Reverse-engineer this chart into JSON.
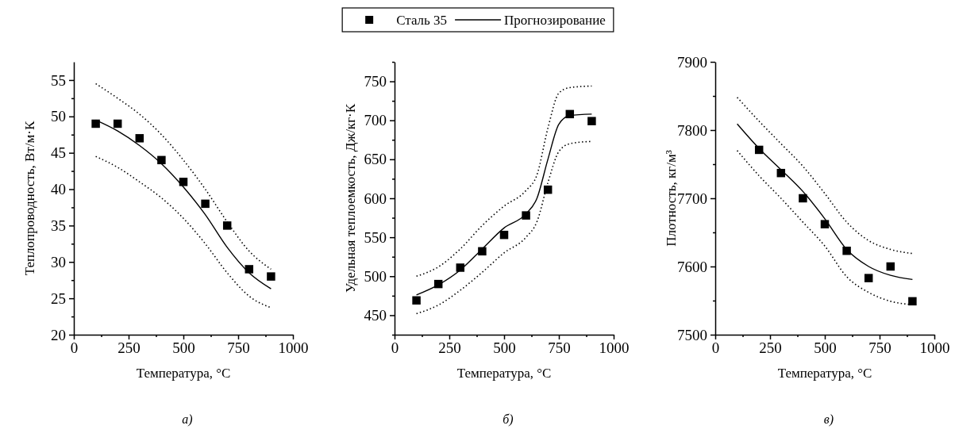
{
  "chart_data": [
    {
      "type": "scatter",
      "xlabel": "Температура, °С",
      "ylabel": "Теплопроводность, Вт/м·К",
      "xlim": [
        0,
        1000
      ],
      "ylim": [
        20,
        57.5
      ],
      "xticks": [
        0,
        {
          "value": 125,
          "label": null
        },
        250,
        {
          "value": 375,
          "label": null
        },
        500,
        {
          "value": 625,
          "label": null
        },
        750,
        {
          "value": 875,
          "label": null
        },
        1000
      ],
      "yticks": [
        20,
        {
          "value": 22.5,
          "label": null
        },
        25,
        {
          "value": 27.5,
          "label": null
        },
        30,
        {
          "value": 32.5,
          "label": null
        },
        35,
        {
          "value": 37.5,
          "label": null
        },
        40,
        {
          "value": 42.5,
          "label": null
        },
        45,
        {
          "value": 47.5,
          "label": null
        },
        50,
        {
          "value": 52.5,
          "label": null
        },
        55
      ],
      "series": [
        {
          "type": "scatter",
          "marker": "square",
          "color": "#000000",
          "x": [
            100,
            200,
            300,
            400,
            500,
            600,
            700,
            800,
            900
          ],
          "values": [
            49,
            49,
            47,
            44,
            41,
            38,
            35,
            29,
            28
          ]
        },
        {
          "type": "line",
          "marker": "none",
          "line_style": "solid",
          "color": "#000000",
          "x": [
            100,
            200,
            300,
            400,
            500,
            600,
            700,
            800,
            900
          ],
          "values": [
            49.5,
            48,
            46,
            43.5,
            40.3,
            36.5,
            32,
            28.5,
            26.3
          ]
        },
        {
          "type": "line",
          "marker": "none",
          "line_style": "dotted",
          "color": "#000000",
          "x": [
            100,
            200,
            300,
            400,
            500,
            600,
            700,
            800,
            900
          ],
          "values": [
            44.5,
            43,
            41,
            38.8,
            36,
            32.5,
            28.5,
            25.3,
            23.7
          ]
        },
        {
          "type": "line",
          "marker": "none",
          "line_style": "dotted",
          "color": "#000000",
          "x": [
            100,
            200,
            300,
            400,
            500,
            600,
            700,
            800,
            900
          ],
          "values": [
            54.5,
            52.5,
            50.3,
            47.5,
            44,
            40,
            35.5,
            31.5,
            29
          ]
        }
      ],
      "annotations": [
        "а)"
      ]
    },
    {
      "type": "scatter",
      "xlabel": "Температура, °С",
      "ylabel": "Удельная теплоемкость, Дж/кг·К",
      "xlim": [
        0,
        1000
      ],
      "ylim": [
        425,
        775
      ],
      "legend": "top",
      "xticks": [
        0,
        {
          "value": 125,
          "label": null
        },
        250,
        {
          "value": 375,
          "label": null
        },
        500,
        {
          "value": 625,
          "label": null
        },
        750,
        {
          "value": 875,
          "label": null
        },
        1000
      ],
      "yticks": [
        {
          "value": 425,
          "label": null
        },
        450,
        {
          "value": 475,
          "label": null
        },
        500,
        {
          "value": 525,
          "label": null
        },
        550,
        {
          "value": 575,
          "label": null
        },
        600,
        {
          "value": 625,
          "label": null
        },
        650,
        {
          "value": 675,
          "label": null
        },
        700,
        {
          "value": 725,
          "label": null
        },
        750,
        {
          "value": 775,
          "label": null
        }
      ],
      "series": [
        {
          "type": "scatter",
          "name": "Сталь 35",
          "marker": "square",
          "color": "#000000",
          "x": [
            100,
            200,
            300,
            400,
            500,
            600,
            700,
            800,
            900
          ],
          "values": [
            469,
            490,
            511,
            532,
            553,
            578,
            611,
            708,
            699
          ]
        },
        {
          "type": "line",
          "name": "Прогнозирование",
          "marker": "none",
          "line_style": "solid",
          "color": "#000000",
          "x": [
            100,
            200,
            300,
            400,
            500,
            600,
            650,
            700,
            750,
            800,
            900
          ],
          "values": [
            476,
            489,
            508,
            535,
            562,
            580,
            600,
            650,
            695,
            706,
            708
          ]
        },
        {
          "type": "line",
          "marker": "none",
          "line_style": "dotted",
          "color": "#000000",
          "x": [
            100,
            200,
            300,
            400,
            500,
            600,
            650,
            700,
            750,
            800,
            900
          ],
          "values": [
            452,
            463,
            482,
            505,
            530,
            550,
            570,
            620,
            660,
            670,
            673
          ]
        },
        {
          "type": "line",
          "marker": "none",
          "line_style": "dotted",
          "color": "#000000",
          "x": [
            100,
            200,
            300,
            400,
            500,
            600,
            650,
            700,
            750,
            800,
            900
          ],
          "values": [
            500,
            512,
            535,
            565,
            590,
            610,
            630,
            690,
            735,
            742,
            744
          ]
        }
      ],
      "annotations": [
        "б)"
      ]
    },
    {
      "type": "scatter",
      "xlabel": "Температура, °С",
      "ylabel": "Плотность, кг/м³",
      "xlim": [
        0,
        1000
      ],
      "ylim": [
        7500,
        7900
      ],
      "xticks": [
        0,
        {
          "value": 125,
          "label": null
        },
        250,
        {
          "value": 375,
          "label": null
        },
        500,
        {
          "value": 625,
          "label": null
        },
        750,
        {
          "value": 875,
          "label": null
        },
        1000
      ],
      "yticks": [
        7500,
        {
          "value": 7550,
          "label": null
        },
        7600,
        {
          "value": 7650,
          "label": null
        },
        7700,
        {
          "value": 7750,
          "label": null
        },
        7800,
        {
          "value": 7850,
          "label": null
        },
        7900
      ],
      "series": [
        {
          "type": "scatter",
          "marker": "square",
          "color": "#000000",
          "x": [
            200,
            300,
            400,
            500,
            600,
            700,
            800,
            900
          ],
          "values": [
            7771,
            7737,
            7700,
            7662,
            7623,
            7583,
            7600,
            7549
          ]
        },
        {
          "type": "line",
          "marker": "none",
          "line_style": "solid",
          "color": "#000000",
          "x": [
            100,
            200,
            300,
            400,
            500,
            600,
            700,
            800,
            900
          ],
          "values": [
            7809,
            7773,
            7742,
            7710,
            7670,
            7625,
            7600,
            7587,
            7581
          ]
        },
        {
          "type": "line",
          "marker": "none",
          "line_style": "dotted",
          "color": "#000000",
          "x": [
            100,
            200,
            300,
            400,
            500,
            600,
            700,
            800,
            900
          ],
          "values": [
            7770,
            7733,
            7700,
            7665,
            7630,
            7585,
            7562,
            7549,
            7544
          ]
        },
        {
          "type": "line",
          "marker": "none",
          "line_style": "dotted",
          "color": "#000000",
          "x": [
            100,
            200,
            300,
            400,
            500,
            600,
            700,
            800,
            900
          ],
          "values": [
            7848,
            7813,
            7780,
            7747,
            7707,
            7665,
            7638,
            7625,
            7619
          ]
        }
      ],
      "annotations": [
        "в)"
      ]
    }
  ]
}
